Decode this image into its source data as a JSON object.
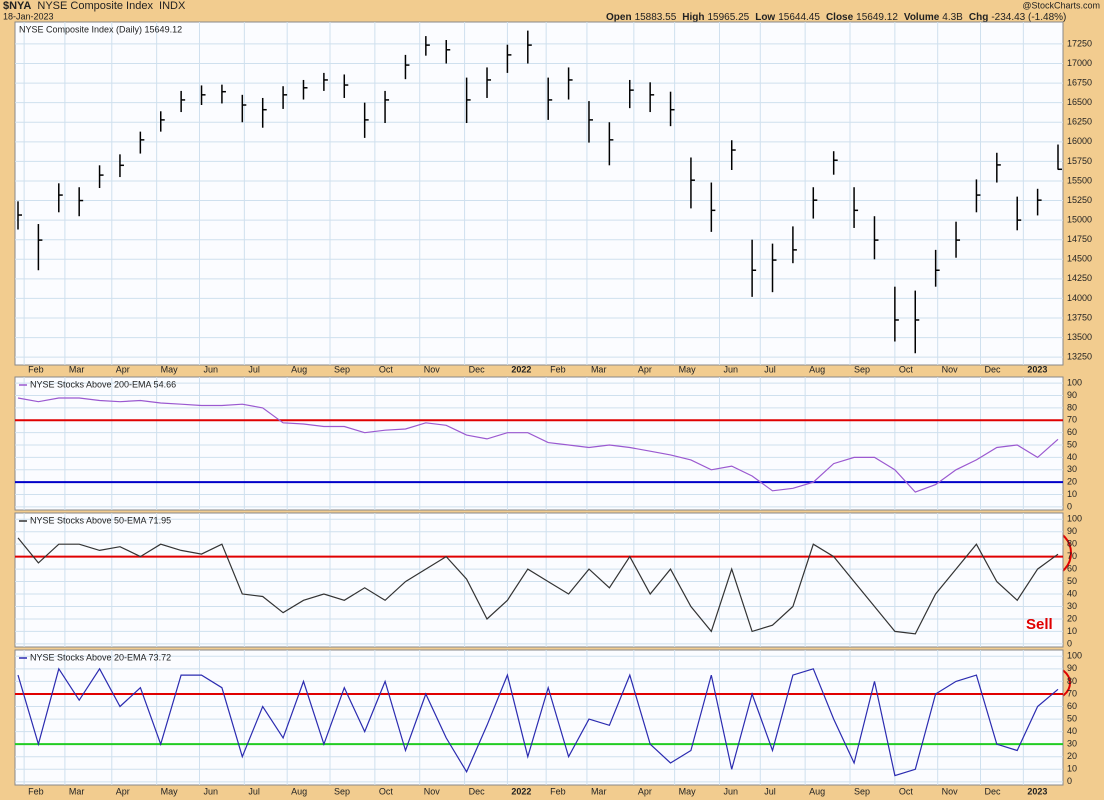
{
  "header": {
    "symbol": "$NYA",
    "name": "NYSE Composite Index",
    "exchange": "INDX",
    "date": "18-Jan-2023",
    "quote": [
      {
        "label": "Open",
        "value": "15883.55"
      },
      {
        "label": "High",
        "value": "15965.25"
      },
      {
        "label": "Low",
        "value": "15644.45"
      },
      {
        "label": "Close",
        "value": "15649.12"
      },
      {
        "label": "Volume",
        "value": "4.3B"
      },
      {
        "label": "Chg",
        "value": "-234.43 (-1.48%)"
      }
    ],
    "credit": "@StockCharts.com"
  },
  "chart_data": [
    {
      "type": "ohlc",
      "title": "NYSE Composite Index (Daily) 15649.12",
      "color": "#000000",
      "high": [
        15240,
        14950,
        15470,
        15420,
        15700,
        15840,
        16130,
        16390,
        16650,
        16720,
        16730,
        16600,
        16560,
        16710,
        16790,
        16880,
        16860,
        16500,
        16650,
        17110,
        17350,
        17300,
        16820,
        16950,
        17240,
        17420,
        16820,
        16950,
        16520,
        16250,
        16790,
        16760,
        16640,
        15800,
        15480,
        16020,
        14750,
        14700,
        14920,
        15420,
        15880,
        15420,
        15050,
        14150,
        14100,
        14620,
        14980,
        15520,
        15860,
        15300,
        15400,
        15965.25
      ],
      "low": [
        14880,
        14360,
        15100,
        15050,
        15410,
        15550,
        15850,
        16130,
        16380,
        16470,
        16490,
        16250,
        16180,
        16420,
        16540,
        16650,
        16560,
        16050,
        16240,
        16800,
        17100,
        17000,
        16240,
        16560,
        16880,
        17000,
        16280,
        16540,
        15990,
        15700,
        16430,
        16380,
        16200,
        15150,
        14850,
        15640,
        14020,
        14080,
        14450,
        15020,
        15580,
        14900,
        14500,
        13450,
        13300,
        14150,
        14520,
        15100,
        15480,
        14870,
        15060,
        15644.45
      ],
      "close": [
        15065,
        14745,
        15320,
        15250,
        15575,
        15700,
        16025,
        16280,
        16535,
        16600,
        16640,
        16470,
        16410,
        16600,
        16690,
        16790,
        16725,
        16280,
        16535,
        16980,
        17235,
        17175,
        16535,
        16790,
        17110,
        17235,
        16535,
        16790,
        16280,
        16025,
        16660,
        16600,
        16410,
        15510,
        15125,
        15895,
        14360,
        14490,
        14620,
        15255,
        15765,
        15125,
        14745,
        13725,
        13725,
        14360,
        14745,
        15320,
        15705,
        15000,
        15255,
        15649.12
      ],
      "xlim": [
        0,
        51
      ],
      "xticks": [
        {
          "value": 0.3,
          "label": "Feb"
        },
        {
          "value": 2.3,
          "label": "Mar"
        },
        {
          "value": 4.6,
          "label": "Apr"
        },
        {
          "value": 6.8,
          "label": "May"
        },
        {
          "value": 8.9,
          "label": "Jun"
        },
        {
          "value": 11.1,
          "label": "Jul"
        },
        {
          "value": 13.2,
          "label": "Aug"
        },
        {
          "value": 15.3,
          "label": "Sep"
        },
        {
          "value": 17.5,
          "label": "Oct"
        },
        {
          "value": 19.7,
          "label": "Nov"
        },
        {
          "value": 21.9,
          "label": "Dec"
        },
        {
          "value": 24.0,
          "label": "2022"
        },
        {
          "value": 25.9,
          "label": "Feb"
        },
        {
          "value": 27.9,
          "label": "Mar"
        },
        {
          "value": 30.2,
          "label": "Apr"
        },
        {
          "value": 32.2,
          "label": "May"
        },
        {
          "value": 34.4,
          "label": "Jun"
        },
        {
          "value": 36.4,
          "label": "Jul"
        },
        {
          "value": 38.6,
          "label": "Aug"
        },
        {
          "value": 40.8,
          "label": "Sep"
        },
        {
          "value": 43.0,
          "label": "Oct"
        },
        {
          "value": 45.1,
          "label": "Nov"
        },
        {
          "value": 47.2,
          "label": "Dec"
        },
        {
          "value": 49.3,
          "label": "2023"
        }
      ],
      "ylim": [
        13150,
        17530
      ],
      "yticks": [
        13250,
        13500,
        13750,
        14000,
        14250,
        14500,
        14750,
        15000,
        15250,
        15500,
        15750,
        16000,
        16250,
        16500,
        16750,
        17000,
        17250
      ],
      "grid": true
    },
    {
      "type": "line",
      "title": "NYSE Stocks Above 200-EMA 54.66",
      "color": "#9b59d0",
      "values": [
        88,
        85,
        88,
        88,
        86,
        85,
        86,
        84,
        83,
        82,
        82,
        83,
        80,
        68,
        67,
        65,
        65,
        60,
        62,
        63,
        68,
        66,
        58,
        55,
        60,
        60,
        52,
        50,
        48,
        50,
        48,
        45,
        42,
        38,
        30,
        33,
        25,
        13,
        15,
        20,
        35,
        40,
        40,
        30,
        12,
        18,
        30,
        38,
        48,
        50,
        40,
        54.66
      ],
      "ylim": [
        -2.5,
        105
      ],
      "yticks": [
        0,
        10,
        20,
        30,
        40,
        50,
        60,
        70,
        80,
        90,
        100
      ],
      "grid": true,
      "reference_lines": [
        {
          "value": 70,
          "color": "#e00000"
        },
        {
          "value": 20,
          "color": "#0000c8"
        }
      ]
    },
    {
      "type": "line",
      "title": "NYSE Stocks Above 50-EMA 71.95",
      "color": "#333333",
      "values": [
        85,
        65,
        80,
        80,
        75,
        78,
        70,
        80,
        75,
        72,
        80,
        40,
        38,
        25,
        35,
        40,
        35,
        45,
        35,
        50,
        60,
        70,
        52,
        20,
        35,
        60,
        50,
        40,
        60,
        45,
        70,
        40,
        60,
        30,
        10,
        60,
        10,
        15,
        30,
        80,
        70,
        50,
        30,
        10,
        8,
        40,
        60,
        80,
        50,
        35,
        60,
        71.95
      ],
      "ylim": [
        -2.5,
        105
      ],
      "yticks": [
        0,
        10,
        20,
        30,
        40,
        50,
        60,
        70,
        80,
        90,
        100
      ],
      "grid": true,
      "reference_lines": [
        {
          "value": 70,
          "color": "#e00000"
        }
      ],
      "annotation": "Sell"
    },
    {
      "type": "line",
      "title": "NYSE Stocks Above 20-EMA 73.72",
      "color": "#2b2bb0",
      "values": [
        85,
        30,
        90,
        65,
        90,
        60,
        75,
        30,
        85,
        85,
        75,
        20,
        60,
        35,
        80,
        30,
        75,
        40,
        80,
        25,
        70,
        35,
        8,
        45,
        85,
        20,
        75,
        20,
        50,
        45,
        85,
        30,
        15,
        25,
        85,
        10,
        70,
        25,
        85,
        90,
        50,
        15,
        80,
        5,
        10,
        70,
        80,
        85,
        30,
        25,
        60,
        73.72
      ],
      "xlim": [
        0,
        51
      ],
      "xticks": [
        {
          "value": 0.3,
          "label": "Feb"
        },
        {
          "value": 2.3,
          "label": "Mar"
        },
        {
          "value": 4.6,
          "label": "Apr"
        },
        {
          "value": 6.8,
          "label": "May"
        },
        {
          "value": 8.9,
          "label": "Jun"
        },
        {
          "value": 11.1,
          "label": "Jul"
        },
        {
          "value": 13.2,
          "label": "Aug"
        },
        {
          "value": 15.3,
          "label": "Sep"
        },
        {
          "value": 17.5,
          "label": "Oct"
        },
        {
          "value": 19.7,
          "label": "Nov"
        },
        {
          "value": 21.9,
          "label": "Dec"
        },
        {
          "value": 24.0,
          "label": "2022"
        },
        {
          "value": 25.9,
          "label": "Feb"
        },
        {
          "value": 27.9,
          "label": "Mar"
        },
        {
          "value": 30.2,
          "label": "Apr"
        },
        {
          "value": 32.2,
          "label": "May"
        },
        {
          "value": 34.4,
          "label": "Jun"
        },
        {
          "value": 36.4,
          "label": "Jul"
        },
        {
          "value": 38.6,
          "label": "Aug"
        },
        {
          "value": 40.8,
          "label": "Sep"
        },
        {
          "value": 43.0,
          "label": "Oct"
        },
        {
          "value": 45.1,
          "label": "Nov"
        },
        {
          "value": 47.2,
          "label": "Dec"
        },
        {
          "value": 49.3,
          "label": "2023"
        }
      ],
      "ylim": [
        -2.5,
        105
      ],
      "yticks": [
        0,
        10,
        20,
        30,
        40,
        50,
        60,
        70,
        80,
        90,
        100
      ],
      "grid": true,
      "reference_lines": [
        {
          "value": 70,
          "color": "#e00000"
        },
        {
          "value": 30,
          "color": "#22cc22"
        }
      ]
    }
  ]
}
